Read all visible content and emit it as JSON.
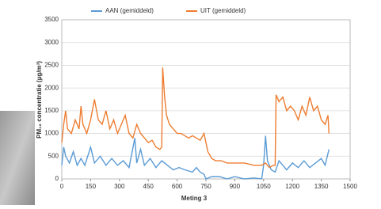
{
  "chart_data": {
    "type": "line",
    "xlabel": "Meting 3",
    "ylabel": "PM₁₀ concentratie (µg/m³)",
    "xlim": [
      0,
      1500
    ],
    "xticks": [
      0,
      150,
      300,
      450,
      600,
      750,
      900,
      1050,
      1200,
      1350,
      1500
    ],
    "ylim": [
      0,
      3500
    ],
    "yticks": [
      0,
      500,
      1000,
      1500,
      2000,
      2500,
      3000,
      3500
    ],
    "grid": true,
    "legend": "top",
    "series": [
      {
        "name": "AAN (gemiddeld)",
        "color": "#5b9bd5",
        "x": [
          0,
          10,
          20,
          40,
          60,
          80,
          100,
          120,
          150,
          170,
          200,
          230,
          260,
          290,
          320,
          350,
          380,
          390,
          410,
          430,
          460,
          490,
          520,
          550,
          580,
          610,
          640,
          680,
          700,
          720,
          740,
          750,
          780,
          820,
          860,
          900,
          950,
          1000,
          1040,
          1050,
          1060,
          1070,
          1090,
          1110,
          1130,
          1150,
          1170,
          1200,
          1230,
          1260,
          1290,
          1320,
          1350,
          1370,
          1390
        ],
        "values": [
          300,
          700,
          500,
          350,
          600,
          300,
          450,
          300,
          700,
          350,
          500,
          300,
          450,
          300,
          400,
          250,
          900,
          350,
          650,
          300,
          450,
          250,
          400,
          300,
          200,
          250,
          200,
          150,
          250,
          150,
          100,
          0,
          50,
          50,
          0,
          50,
          0,
          20,
          0,
          300,
          950,
          400,
          200,
          150,
          400,
          300,
          200,
          350,
          250,
          400,
          250,
          350,
          450,
          300,
          650
        ]
      },
      {
        "name": "UIT (gemiddeld)",
        "color": "#ed7d31",
        "x": [
          0,
          10,
          20,
          30,
          50,
          70,
          90,
          100,
          110,
          130,
          150,
          170,
          190,
          210,
          230,
          250,
          270,
          290,
          310,
          330,
          350,
          370,
          390,
          410,
          430,
          450,
          470,
          490,
          510,
          520,
          525,
          535,
          545,
          560,
          580,
          600,
          620,
          640,
          660,
          680,
          700,
          720,
          740,
          750,
          760,
          780,
          800,
          830,
          860,
          900,
          950,
          1000,
          1040,
          1060,
          1080,
          1100,
          1110,
          1115,
          1130,
          1150,
          1170,
          1190,
          1210,
          1230,
          1250,
          1270,
          1290,
          1310,
          1330,
          1350,
          1370,
          1385,
          1390
        ],
        "values": [
          800,
          1200,
          1500,
          1100,
          1000,
          1300,
          1100,
          1600,
          1200,
          1000,
          1300,
          1750,
          1300,
          1200,
          1500,
          1100,
          1300,
          1000,
          1200,
          1400,
          1000,
          900,
          1200,
          1000,
          900,
          800,
          850,
          700,
          650,
          700,
          2450,
          1800,
          1400,
          1200,
          1100,
          1000,
          1000,
          950,
          900,
          950,
          900,
          850,
          1000,
          800,
          600,
          450,
          400,
          400,
          350,
          350,
          350,
          300,
          300,
          350,
          250,
          300,
          300,
          1850,
          1700,
          1800,
          1500,
          1600,
          1500,
          1300,
          1600,
          1400,
          1800,
          1500,
          1600,
          1300,
          1200,
          1400,
          1000
        ]
      }
    ]
  }
}
